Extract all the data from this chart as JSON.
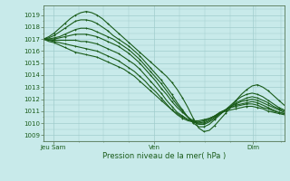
{
  "title": "Pression niveau de la mer( hPa )",
  "ylim": [
    1008.5,
    1019.8
  ],
  "yticks": [
    1009,
    1010,
    1011,
    1012,
    1013,
    1014,
    1015,
    1016,
    1017,
    1018,
    1019
  ],
  "xtick_labels": [
    "Jeu Sam",
    "Ven",
    "Dim"
  ],
  "xtick_positions": [
    0.04,
    0.46,
    0.87
  ],
  "bg_color": "#c8eaea",
  "grid_color": "#a0cccc",
  "line_color": "#1a5c1a",
  "line_width": 0.8,
  "figsize": [
    3.2,
    2.0
  ],
  "dpi": 100,
  "lines": [
    [
      1017.0,
      1017.2,
      1017.5,
      1017.9,
      1018.3,
      1018.7,
      1019.0,
      1019.2,
      1019.3,
      1019.2,
      1019.0,
      1018.7,
      1018.3,
      1017.9,
      1017.5,
      1017.1,
      1016.7,
      1016.3,
      1015.9,
      1015.5,
      1015.1,
      1014.7,
      1014.3,
      1013.9,
      1013.4,
      1012.8,
      1012.1,
      1011.3,
      1010.4,
      1009.6,
      1009.3,
      1009.4,
      1009.8,
      1010.3,
      1010.8,
      1011.3,
      1011.9,
      1012.4,
      1012.8,
      1013.1,
      1013.2,
      1013.0,
      1012.7,
      1012.3,
      1011.9,
      1011.5
    ],
    [
      1017.0,
      1017.1,
      1017.3,
      1017.6,
      1017.9,
      1018.2,
      1018.5,
      1018.6,
      1018.6,
      1018.5,
      1018.3,
      1018.0,
      1017.7,
      1017.3,
      1017.0,
      1016.7,
      1016.4,
      1016.0,
      1015.6,
      1015.1,
      1014.6,
      1014.1,
      1013.6,
      1013.0,
      1012.4,
      1011.7,
      1011.1,
      1010.5,
      1010.0,
      1009.7,
      1009.7,
      1009.9,
      1010.3,
      1010.7,
      1011.1,
      1011.5,
      1011.9,
      1012.2,
      1012.4,
      1012.5,
      1012.4,
      1012.2,
      1011.9,
      1011.6,
      1011.3,
      1011.1
    ],
    [
      1017.0,
      1017.0,
      1017.1,
      1017.2,
      1017.4,
      1017.6,
      1017.8,
      1017.9,
      1017.9,
      1017.8,
      1017.6,
      1017.4,
      1017.2,
      1017.0,
      1016.7,
      1016.4,
      1016.1,
      1015.7,
      1015.3,
      1014.8,
      1014.3,
      1013.8,
      1013.3,
      1012.7,
      1012.1,
      1011.5,
      1011.0,
      1010.5,
      1010.1,
      1009.9,
      1009.9,
      1010.1,
      1010.4,
      1010.8,
      1011.1,
      1011.4,
      1011.7,
      1011.9,
      1012.1,
      1012.2,
      1012.1,
      1011.9,
      1011.7,
      1011.4,
      1011.2,
      1011.0
    ],
    [
      1017.0,
      1017.0,
      1017.0,
      1017.1,
      1017.2,
      1017.3,
      1017.4,
      1017.4,
      1017.4,
      1017.3,
      1017.2,
      1017.0,
      1016.8,
      1016.6,
      1016.4,
      1016.1,
      1015.8,
      1015.4,
      1015.0,
      1014.5,
      1014.0,
      1013.5,
      1012.9,
      1012.4,
      1011.8,
      1011.3,
      1010.9,
      1010.5,
      1010.2,
      1010.0,
      1010.0,
      1010.2,
      1010.5,
      1010.8,
      1011.1,
      1011.4,
      1011.6,
      1011.8,
      1011.9,
      1012.0,
      1011.9,
      1011.7,
      1011.5,
      1011.3,
      1011.1,
      1010.9
    ],
    [
      1017.0,
      1016.9,
      1016.9,
      1016.9,
      1016.9,
      1016.9,
      1016.9,
      1016.8,
      1016.8,
      1016.7,
      1016.6,
      1016.4,
      1016.2,
      1016.0,
      1015.8,
      1015.5,
      1015.2,
      1014.9,
      1014.5,
      1014.0,
      1013.5,
      1013.0,
      1012.5,
      1011.9,
      1011.4,
      1010.9,
      1010.6,
      1010.3,
      1010.1,
      1010.0,
      1010.1,
      1010.3,
      1010.6,
      1010.9,
      1011.1,
      1011.3,
      1011.5,
      1011.6,
      1011.7,
      1011.8,
      1011.7,
      1011.5,
      1011.3,
      1011.1,
      1010.9,
      1010.8
    ],
    [
      1017.0,
      1016.9,
      1016.8,
      1016.7,
      1016.6,
      1016.5,
      1016.4,
      1016.3,
      1016.2,
      1016.1,
      1016.0,
      1015.8,
      1015.6,
      1015.4,
      1015.2,
      1014.9,
      1014.6,
      1014.3,
      1013.9,
      1013.5,
      1013.0,
      1012.6,
      1012.1,
      1011.6,
      1011.1,
      1010.7,
      1010.4,
      1010.2,
      1010.1,
      1010.1,
      1010.2,
      1010.4,
      1010.6,
      1010.9,
      1011.1,
      1011.3,
      1011.4,
      1011.5,
      1011.6,
      1011.6,
      1011.5,
      1011.3,
      1011.2,
      1011.0,
      1010.9,
      1010.8
    ],
    [
      1017.0,
      1016.8,
      1016.7,
      1016.5,
      1016.3,
      1016.1,
      1015.9,
      1015.8,
      1015.7,
      1015.6,
      1015.5,
      1015.3,
      1015.1,
      1014.9,
      1014.7,
      1014.5,
      1014.2,
      1013.9,
      1013.5,
      1013.1,
      1012.7,
      1012.3,
      1011.9,
      1011.5,
      1011.1,
      1010.8,
      1010.5,
      1010.3,
      1010.2,
      1010.2,
      1010.3,
      1010.4,
      1010.6,
      1010.8,
      1011.0,
      1011.1,
      1011.2,
      1011.3,
      1011.4,
      1011.4,
      1011.3,
      1011.2,
      1011.0,
      1010.9,
      1010.8,
      1010.7
    ]
  ]
}
